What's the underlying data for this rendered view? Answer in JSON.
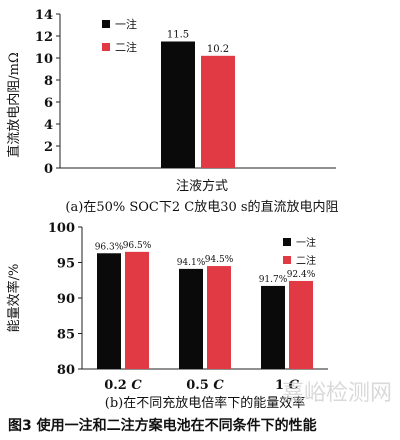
{
  "figure_caption": "图3   使用一注和二注方案电池在不同条件下的性能",
  "watermark": "嘉峪检测网",
  "colors": {
    "series1": "#0a0a0a",
    "series2": "#e23a45"
  },
  "chart_data": [
    {
      "type": "bar",
      "panel": "a",
      "caption": "(a)在50% SOC下2 C放电30 s的直流放电内阻",
      "xlabel": "注液方式",
      "ylabel": "直流放电内阻/mΩ",
      "ylim": [
        0,
        14
      ],
      "yticks": [
        0,
        2,
        4,
        6,
        8,
        10,
        12,
        14
      ],
      "grid": false,
      "legend_position": "top-left",
      "categories": [
        ""
      ],
      "series": [
        {
          "name": "一注",
          "values": [
            11.5
          ],
          "labels": [
            "11.5"
          ]
        },
        {
          "name": "二注",
          "values": [
            10.2
          ],
          "labels": [
            "10.2"
          ]
        }
      ]
    },
    {
      "type": "bar",
      "panel": "b",
      "caption": "(b)在不同充放电倍率下的能量效率",
      "xlabel": "",
      "ylabel": "能量效率/%",
      "ylim": [
        80,
        100
      ],
      "yticks": [
        80,
        85,
        90,
        95,
        100
      ],
      "grid": false,
      "legend_position": "top-right",
      "categories": [
        "0.2 C",
        "0.5 C",
        "1 C"
      ],
      "series": [
        {
          "name": "一注",
          "values": [
            96.3,
            94.1,
            91.7
          ],
          "labels": [
            "96.3%",
            "94.1%",
            "91.7%"
          ]
        },
        {
          "name": "二注",
          "values": [
            96.5,
            94.5,
            92.4
          ],
          "labels": [
            "96.5%",
            "94.5%",
            "92.4%"
          ]
        }
      ]
    }
  ]
}
